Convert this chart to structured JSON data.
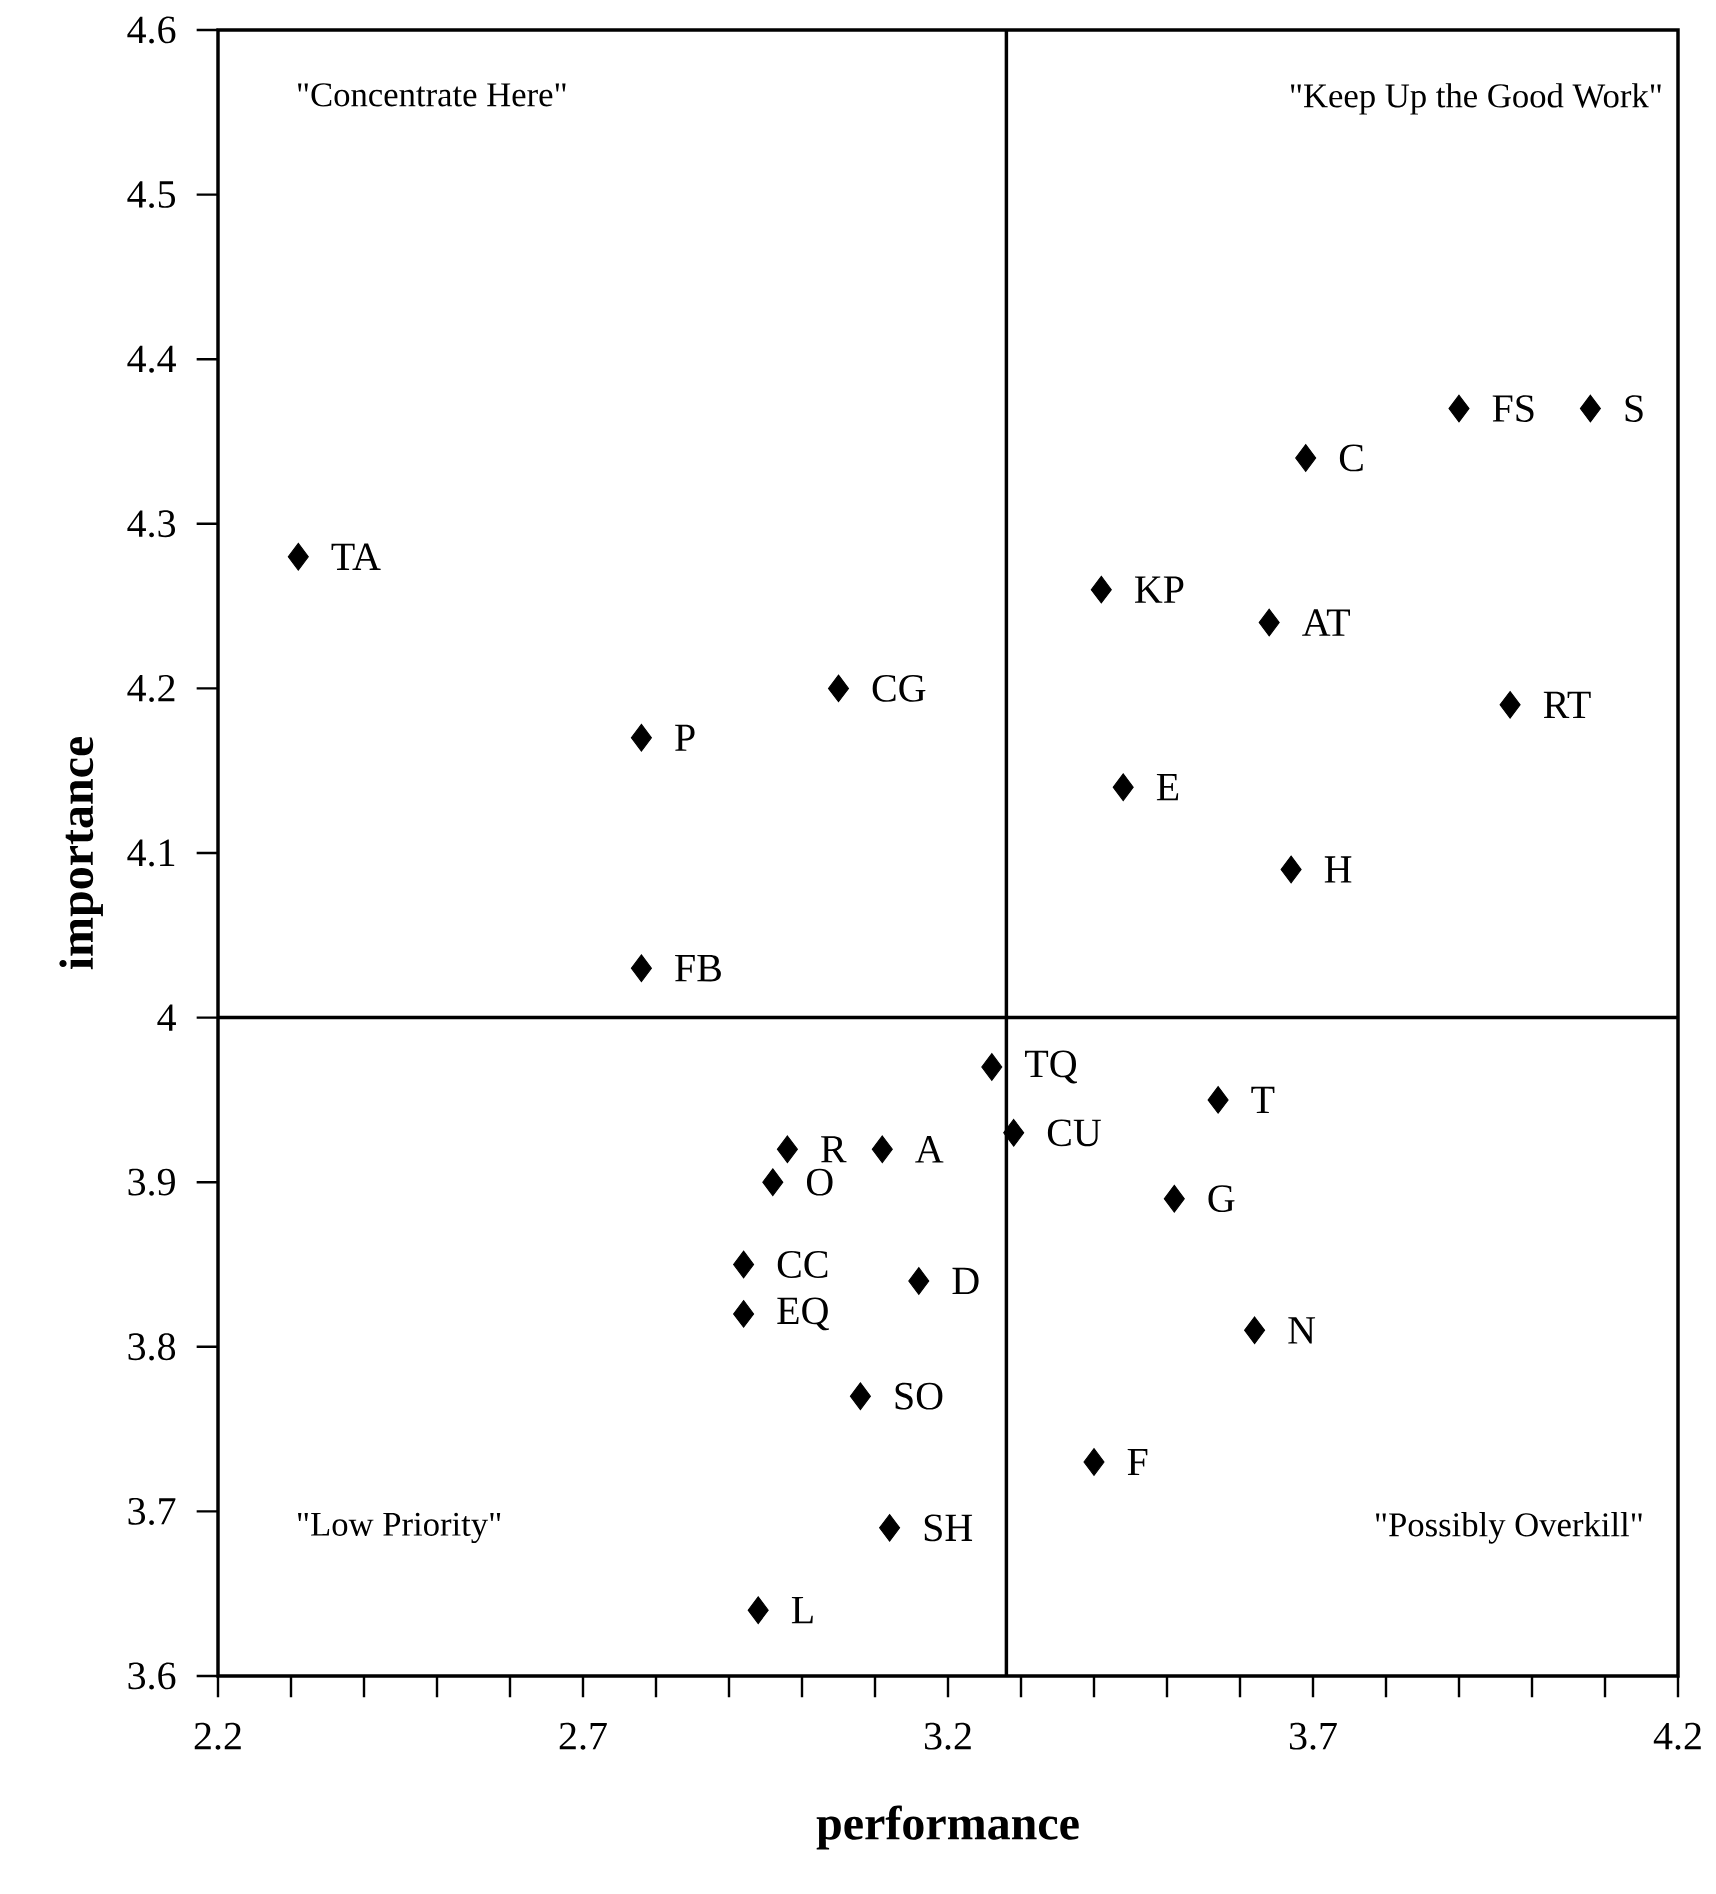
{
  "chart_data": {
    "type": "scatter",
    "xlabel": "performance",
    "ylabel": "importance",
    "marker": "diamond",
    "grid": false,
    "xlim": [
      2.2,
      4.2
    ],
    "ylim": [
      3.6,
      4.6
    ],
    "xticks": [
      2.2,
      {
        "value": 2.3,
        "label": null
      },
      {
        "value": 2.4,
        "label": null
      },
      {
        "value": 2.5,
        "label": null
      },
      {
        "value": 2.6,
        "label": null
      },
      2.7,
      {
        "value": 2.8,
        "label": null
      },
      {
        "value": 2.9,
        "label": null
      },
      {
        "value": 3.0,
        "label": null
      },
      {
        "value": 3.1,
        "label": null
      },
      3.2,
      {
        "value": 3.3,
        "label": null
      },
      {
        "value": 3.4,
        "label": null
      },
      {
        "value": 3.5,
        "label": null
      },
      {
        "value": 3.6,
        "label": null
      },
      3.7,
      {
        "value": 3.8,
        "label": null
      },
      {
        "value": 3.9,
        "label": null
      },
      {
        "value": 4.0,
        "label": null
      },
      {
        "value": 4.1,
        "label": null
      },
      4.2
    ],
    "yticks": [
      3.6,
      3.7,
      3.8,
      3.9,
      4,
      4.1,
      4.2,
      4.3,
      4.4,
      4.5,
      4.6
    ],
    "ref_lines": [
      {
        "axis": "x",
        "value": 3.28,
        "color": "#000000"
      },
      {
        "axis": "y",
        "value": 4.0,
        "color": "#000000"
      }
    ],
    "annotations": [
      "\"Concentrate Here\"",
      "\"Keep Up the Good Work\"",
      "\"Low Priority\"",
      "\"Possibly Overkill\"",
      {
        "text": "TA",
        "x": 2.31,
        "y": 4.28
      },
      {
        "text": "P",
        "x": 2.78,
        "y": 4.17
      },
      {
        "text": "CG",
        "x": 3.05,
        "y": 4.2
      },
      {
        "text": "FB",
        "x": 2.78,
        "y": 4.03
      },
      {
        "text": "FS",
        "x": 3.9,
        "y": 4.37
      },
      {
        "text": "S",
        "x": 4.08,
        "y": 4.37
      },
      {
        "text": "C",
        "x": 3.69,
        "y": 4.34
      },
      {
        "text": "KP",
        "x": 3.41,
        "y": 4.26
      },
      {
        "text": "AT",
        "x": 3.64,
        "y": 4.24
      },
      {
        "text": "RT",
        "x": 3.97,
        "y": 4.19
      },
      {
        "text": "E",
        "x": 3.44,
        "y": 4.14
      },
      {
        "text": "H",
        "x": 3.67,
        "y": 4.09
      },
      {
        "text": "TQ",
        "x": 3.26,
        "y": 3.97
      },
      {
        "text": "T",
        "x": 3.57,
        "y": 3.95
      },
      {
        "text": "CU",
        "x": 3.29,
        "y": 3.93
      },
      {
        "text": "R",
        "x": 2.98,
        "y": 3.92
      },
      {
        "text": "A",
        "x": 3.11,
        "y": 3.92
      },
      {
        "text": "O",
        "x": 2.96,
        "y": 3.9
      },
      {
        "text": "G",
        "x": 3.51,
        "y": 3.89
      },
      {
        "text": "CC",
        "x": 2.92,
        "y": 3.85
      },
      {
        "text": "D",
        "x": 3.16,
        "y": 3.84
      },
      {
        "text": "EQ",
        "x": 2.92,
        "y": 3.82
      },
      {
        "text": "N",
        "x": 3.62,
        "y": 3.81
      },
      {
        "text": "SO",
        "x": 3.08,
        "y": 3.77
      },
      {
        "text": "F",
        "x": 3.4,
        "y": 3.73
      },
      {
        "text": "SH",
        "x": 3.12,
        "y": 3.69
      },
      {
        "text": "L",
        "x": 2.94,
        "y": 3.64
      }
    ],
    "series": [
      {
        "color": "#000000",
        "x": [
          2.31,
          2.78,
          3.05,
          2.78,
          3.9,
          4.08,
          3.69,
          3.41,
          3.64,
          3.97,
          3.44,
          3.67,
          3.26,
          3.57,
          3.29,
          2.98,
          3.11,
          2.96,
          3.51,
          2.92,
          3.16,
          2.92,
          3.62,
          3.08,
          3.4,
          3.12,
          2.94
        ],
        "values": [
          4.28,
          4.17,
          4.2,
          4.03,
          4.37,
          4.37,
          4.34,
          4.26,
          4.24,
          4.19,
          4.14,
          4.09,
          3.97,
          3.95,
          3.93,
          3.92,
          3.92,
          3.9,
          3.89,
          3.85,
          3.84,
          3.82,
          3.81,
          3.77,
          3.73,
          3.69,
          3.64
        ]
      }
    ]
  }
}
